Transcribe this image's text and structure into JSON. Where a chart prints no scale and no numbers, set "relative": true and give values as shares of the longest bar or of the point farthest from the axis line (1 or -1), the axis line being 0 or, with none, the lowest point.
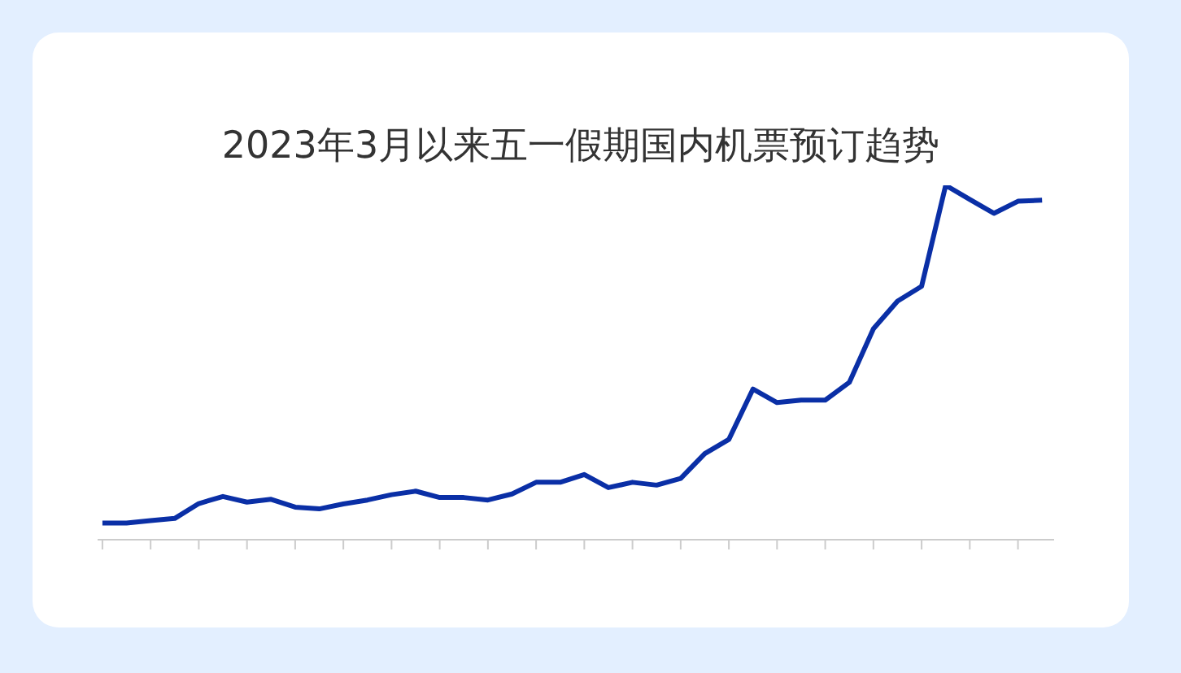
{
  "chart_data": {
    "type": "line",
    "title": "2023年3月以来五一假期国内机票预订趋势",
    "relative": true,
    "grid": false,
    "legend": false,
    "marker": "none",
    "line_style": "solid",
    "categories": [
      null,
      null,
      null,
      null,
      null,
      null,
      null,
      null,
      null,
      null,
      null,
      null,
      null,
      null,
      null,
      null,
      null,
      null,
      null,
      null,
      null,
      null,
      null,
      null,
      null,
      null,
      null,
      null,
      null,
      null,
      null,
      null,
      null,
      null,
      null,
      null,
      null,
      null,
      null,
      null
    ],
    "series": [
      {
        "color": "#0a2fa6",
        "values": [
          0.047,
          0.047,
          0.054,
          0.06,
          0.102,
          0.122,
          0.106,
          0.114,
          0.092,
          0.087,
          0.101,
          0.112,
          0.127,
          0.137,
          0.119,
          0.119,
          0.112,
          0.129,
          0.162,
          0.162,
          0.184,
          0.147,
          0.162,
          0.154,
          0.173,
          0.243,
          0.283,
          0.425,
          0.387,
          0.394,
          0.394,
          0.444,
          0.595,
          0.673,
          0.715,
          1,
          0.96,
          0.921,
          0.955,
          0.958
        ]
      }
    ]
  }
}
